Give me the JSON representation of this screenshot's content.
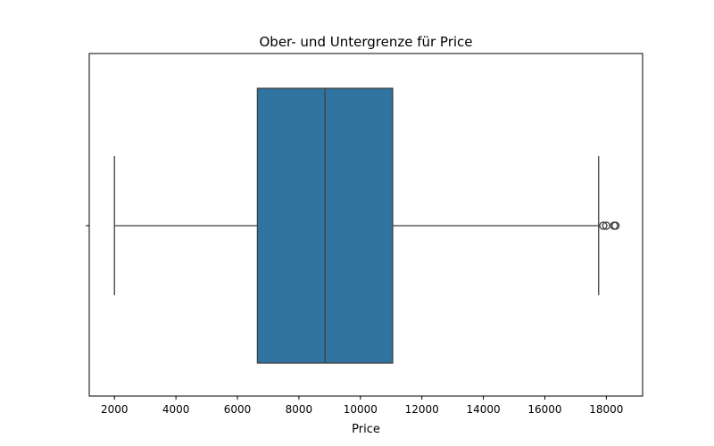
{
  "chart_data": {
    "type": "boxplot",
    "title": "Ober- und Untergrenze für Price",
    "xlabel": "Price",
    "ylabel": "",
    "xlim": [
      1180,
      19180
    ],
    "xticks": [
      2000,
      4000,
      6000,
      8000,
      10000,
      12000,
      14000,
      16000,
      18000
    ],
    "xtick_labels": [
      "2000",
      "4000",
      "6000",
      "8000",
      "10000",
      "12000",
      "14000",
      "16000",
      "18000"
    ],
    "orientation": "horizontal",
    "grid": false,
    "box": {
      "whisker_low": 2000,
      "q1": 6650,
      "median": 8850,
      "q3": 11050,
      "whisker_high": 17750,
      "outliers": [
        17900,
        18000,
        18250,
        18300
      ]
    },
    "colors": {
      "box_fill": "#3274a1",
      "line": "#3f3f3f",
      "axis": "#000000"
    }
  }
}
